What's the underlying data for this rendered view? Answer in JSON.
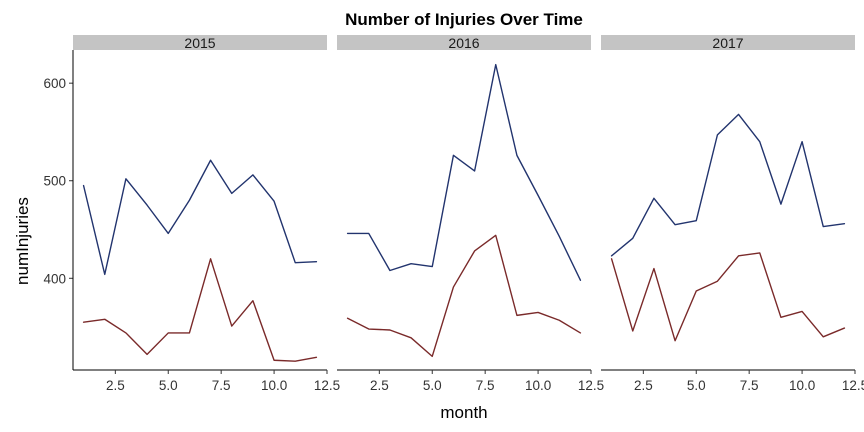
{
  "chart_data": {
    "type": "line",
    "title": "Number of Injuries Over Time",
    "xlabel": "month",
    "ylabel": "numInjuries",
    "xlim": [
      0.5,
      12.5
    ],
    "ylim": [
      306,
      634
    ],
    "x_ticks": [
      2.5,
      5.0,
      7.5,
      10.0,
      12.5
    ],
    "x_tick_labels": [
      "2.5",
      "5.0",
      "7.5",
      "10.0",
      "12.5"
    ],
    "y_ticks": [
      400,
      500,
      600
    ],
    "y_tick_labels": [
      "400",
      "500",
      "600"
    ],
    "grid": false,
    "legend": "none",
    "series_colors": [
      "#22346e",
      "#7a2a2a"
    ],
    "facets": [
      {
        "label": "2015",
        "series": [
          {
            "values": [
              [
                1,
                495
              ],
              [
                2,
                404
              ],
              [
                3,
                502
              ],
              [
                4,
                475
              ],
              [
                5,
                446
              ],
              [
                6,
                480
              ],
              [
                7,
                521
              ],
              [
                8,
                487
              ],
              [
                9,
                506
              ],
              [
                10,
                479
              ],
              [
                11,
                416
              ],
              [
                12,
                417
              ]
            ]
          },
          {
            "values": [
              [
                1,
                355
              ],
              [
                2,
                358
              ],
              [
                3,
                344
              ],
              [
                4,
                322
              ],
              [
                5,
                344
              ],
              [
                6,
                344
              ],
              [
                7,
                420
              ],
              [
                8,
                351
              ],
              [
                9,
                377
              ],
              [
                10,
                316
              ],
              [
                11,
                315
              ],
              [
                12,
                319
              ]
            ]
          }
        ]
      },
      {
        "label": "2016",
        "series": [
          {
            "values": [
              [
                1,
                446
              ],
              [
                2,
                446
              ],
              [
                3,
                408
              ],
              [
                4,
                415
              ],
              [
                5,
                412
              ],
              [
                6,
                526
              ],
              [
                7,
                510
              ],
              [
                8,
                619
              ],
              [
                9,
                526
              ],
              [
                10,
                485
              ],
              [
                11,
                443
              ],
              [
                12,
                398
              ]
            ]
          },
          {
            "values": [
              [
                1,
                359
              ],
              [
                2,
                348
              ],
              [
                3,
                347
              ],
              [
                4,
                339
              ],
              [
                5,
                320
              ],
              [
                6,
                391
              ],
              [
                7,
                428
              ],
              [
                8,
                444
              ],
              [
                9,
                362
              ],
              [
                10,
                365
              ],
              [
                11,
                357
              ],
              [
                12,
                344
              ]
            ]
          }
        ]
      },
      {
        "label": "2017",
        "series": [
          {
            "values": [
              [
                1,
                423
              ],
              [
                2,
                441
              ],
              [
                3,
                482
              ],
              [
                4,
                455
              ],
              [
                5,
                459
              ],
              [
                6,
                547
              ],
              [
                7,
                568
              ],
              [
                8,
                540
              ],
              [
                9,
                476
              ],
              [
                10,
                540
              ],
              [
                11,
                453
              ],
              [
                12,
                456
              ]
            ]
          },
          {
            "values": [
              [
                1,
                420
              ],
              [
                2,
                346
              ],
              [
                3,
                410
              ],
              [
                4,
                336
              ],
              [
                5,
                387
              ],
              [
                6,
                397
              ],
              [
                7,
                423
              ],
              [
                8,
                426
              ],
              [
                9,
                360
              ],
              [
                10,
                366
              ],
              [
                11,
                340
              ],
              [
                12,
                349
              ]
            ]
          }
        ]
      }
    ]
  }
}
